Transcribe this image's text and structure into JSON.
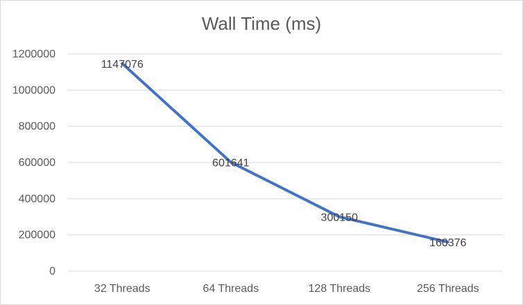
{
  "chart_data": {
    "type": "line",
    "title": "Wall Time (ms)",
    "categories": [
      "32 Threads",
      "64 Threads",
      "128 Threads",
      "256 Threads"
    ],
    "series": [
      {
        "values": [
          1147076,
          601641,
          300150,
          160376
        ]
      }
    ],
    "data_labels": [
      "1147076",
      "601641",
      "300150",
      "160376"
    ],
    "ylim": [
      0,
      1200000
    ],
    "yticks": [
      "0",
      "200000",
      "400000",
      "600000",
      "800000",
      "1000000",
      "1200000"
    ],
    "grid": true,
    "legend": "none",
    "colors": {
      "line": "#4472C4",
      "grid": "#d9d9d9",
      "text": "#595959"
    }
  }
}
